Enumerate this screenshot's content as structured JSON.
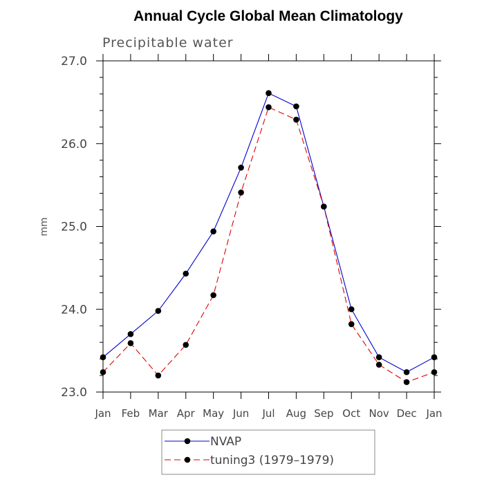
{
  "chart_data": {
    "type": "line",
    "title": "Annual Cycle Global Mean Climatology",
    "subtitle": "Precipitable water",
    "ylabel": "mm",
    "xlabel": "",
    "categories": [
      "Jan",
      "Feb",
      "Mar",
      "Apr",
      "May",
      "Jun",
      "Jul",
      "Aug",
      "Sep",
      "Oct",
      "Nov",
      "Dec",
      "Jan"
    ],
    "ylim": [
      23.0,
      27.0
    ],
    "yticks": [
      23.0,
      24.0,
      25.0,
      26.0,
      27.0
    ],
    "ytick_labels": [
      "23.0",
      "24.0",
      "25.0",
      "26.0",
      "27.0"
    ],
    "grid": false,
    "legend_position": "bottom",
    "series": [
      {
        "name": "NVAP",
        "color": "#0000cc",
        "dash": "solid",
        "values": [
          23.42,
          23.7,
          23.98,
          24.43,
          24.94,
          25.71,
          26.61,
          26.45,
          25.24,
          24.0,
          23.42,
          23.24,
          23.42
        ]
      },
      {
        "name": "tuning3 (1979–1979)",
        "color": "#dd0000",
        "dash": "dashed",
        "values": [
          23.24,
          23.59,
          23.2,
          23.57,
          24.17,
          25.41,
          26.44,
          26.29,
          25.24,
          23.82,
          23.33,
          23.12,
          23.24
        ]
      }
    ]
  }
}
